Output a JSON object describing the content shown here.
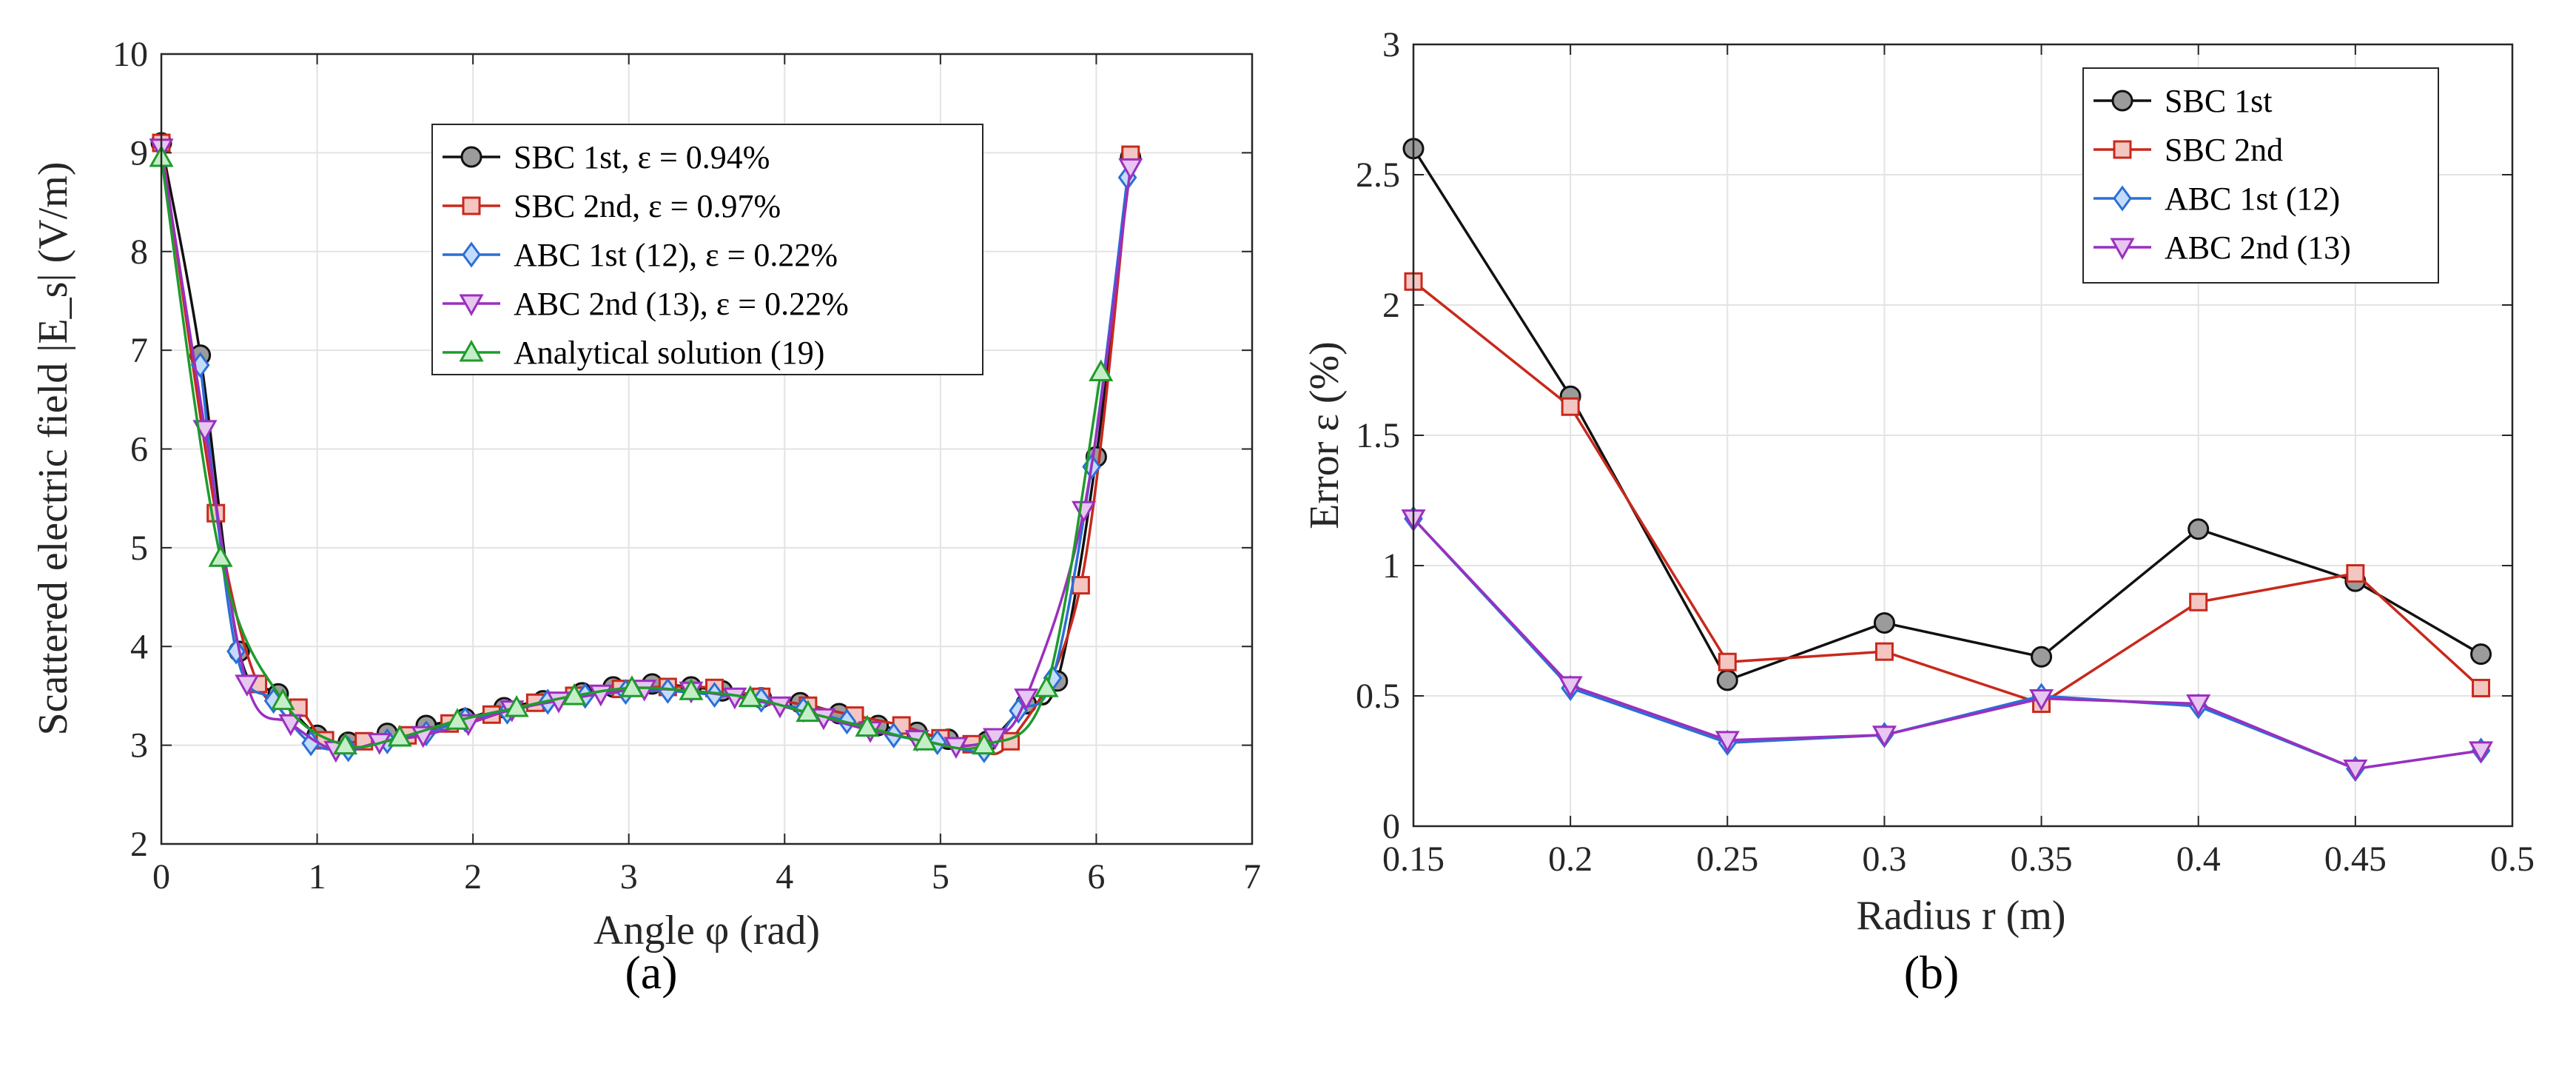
{
  "figure": {
    "panels": [
      "(a)",
      "(b)"
    ]
  },
  "chart_data": [
    {
      "id": "a",
      "type": "line",
      "caption": "(a)",
      "xlabel": "Angle φ (rad)",
      "ylabel": "Scattered electric field |E_s| (V/m)",
      "xlim": [
        0,
        7
      ],
      "ylim": [
        2,
        10
      ],
      "xticks": [
        "0",
        "1",
        "2",
        "3",
        "4",
        "5",
        "6",
        "7"
      ],
      "yticks": [
        "2",
        "3",
        "4",
        "5",
        "6",
        "7",
        "8",
        "9",
        "10"
      ],
      "grid": true,
      "legend_position": "top-center",
      "series": [
        {
          "name": "SBC 1st, ε = 0.94%",
          "color": "#111111",
          "fill": "#9b9b9b",
          "marker": "circle",
          "x": [
            0,
            0.25,
            0.5,
            0.75,
            1.0,
            1.2,
            1.45,
            1.7,
            1.95,
            2.2,
            2.45,
            2.7,
            2.9,
            3.15,
            3.4,
            3.6,
            3.85,
            4.1,
            4.35,
            4.6,
            4.85,
            5.05,
            5.3,
            5.55,
            5.75,
            6.0,
            6.22
          ],
          "y": [
            9.1,
            6.95,
            3.95,
            3.52,
            3.1,
            3.03,
            3.12,
            3.2,
            3.27,
            3.38,
            3.45,
            3.53,
            3.59,
            3.62,
            3.59,
            3.55,
            3.48,
            3.43,
            3.32,
            3.2,
            3.13,
            3.06,
            3.04,
            3.42,
            3.65,
            5.92,
            8.95
          ]
        },
        {
          "name": "SBC 2nd, ε = 0.97%",
          "color": "#c8291c",
          "fill": "#f4c6c2",
          "marker": "square",
          "x": [
            0,
            0.35,
            0.62,
            0.88,
            1.05,
            1.3,
            1.58,
            1.85,
            2.12,
            2.4,
            2.65,
            2.95,
            3.25,
            3.55,
            3.85,
            4.15,
            4.45,
            4.75,
            5.0,
            5.2,
            5.45,
            5.9,
            6.22
          ],
          "y": [
            9.1,
            5.35,
            3.62,
            3.38,
            3.05,
            3.04,
            3.1,
            3.22,
            3.31,
            3.43,
            3.5,
            3.57,
            3.59,
            3.58,
            3.49,
            3.4,
            3.3,
            3.2,
            3.07,
            3.01,
            3.04,
            4.62,
            8.98
          ]
        },
        {
          "name": "ABC 1st (12), ε = 0.22%",
          "color": "#2a6fd6",
          "fill": "#c4dcfb",
          "marker": "diamond",
          "x": [
            0.25,
            0.48,
            0.72,
            0.96,
            1.2,
            1.45,
            1.7,
            1.95,
            2.22,
            2.48,
            2.72,
            2.98,
            3.25,
            3.55,
            3.85,
            4.12,
            4.4,
            4.7,
            4.98,
            5.28,
            5.5,
            5.72,
            5.97,
            6.2
          ],
          "y": [
            6.85,
            3.95,
            3.45,
            3.02,
            2.96,
            3.04,
            3.12,
            3.26,
            3.34,
            3.44,
            3.5,
            3.54,
            3.55,
            3.51,
            3.46,
            3.36,
            3.24,
            3.1,
            3.03,
            2.95,
            3.35,
            3.68,
            5.82,
            8.75
          ]
        },
        {
          "name": "ABC 2nd (13), ε = 0.22%",
          "color": "#9b2fbf",
          "fill": "#e7c6f1",
          "marker": "triangle-down",
          "x": [
            0,
            0.28,
            0.55,
            0.83,
            1.12,
            1.4,
            1.68,
            1.97,
            2.25,
            2.55,
            2.82,
            3.1,
            3.4,
            3.68,
            3.97,
            4.25,
            4.55,
            4.85,
            5.1,
            5.35,
            5.55,
            5.92,
            6.22
          ],
          "y": [
            9.05,
            6.2,
            3.62,
            3.22,
            2.95,
            3.03,
            3.1,
            3.22,
            3.36,
            3.45,
            3.52,
            3.57,
            3.55,
            3.49,
            3.4,
            3.28,
            3.15,
            3.06,
            2.99,
            3.08,
            3.48,
            5.38,
            8.85
          ]
        },
        {
          "name": "Analytical solution (19)",
          "color": "#1f9b2c",
          "fill": "#c4eec8",
          "marker": "triangle-up",
          "x": [
            0,
            0.38,
            0.78,
            1.18,
            1.53,
            1.9,
            2.28,
            2.65,
            3.02,
            3.4,
            3.78,
            4.15,
            4.53,
            4.9,
            5.28,
            5.68,
            6.03
          ],
          "y": [
            8.95,
            4.9,
            3.45,
            3.0,
            3.08,
            3.25,
            3.38,
            3.5,
            3.58,
            3.55,
            3.48,
            3.33,
            3.18,
            3.04,
            3.0,
            3.58,
            6.78
          ]
        }
      ]
    },
    {
      "id": "b",
      "type": "line",
      "caption": "(b)",
      "xlabel": "Radius r (m)",
      "ylabel": "Error ε (%)",
      "xlim": [
        0.15,
        0.5
      ],
      "ylim": [
        0,
        3
      ],
      "xticks": [
        "0.15",
        "0.2",
        "0.25",
        "0.3",
        "0.35",
        "0.4",
        "0.45",
        "0.5"
      ],
      "yticks": [
        "0",
        "0.5",
        "1",
        "1.5",
        "2",
        "2.5",
        "3"
      ],
      "grid": true,
      "legend_position": "top-right",
      "x": [
        0.15,
        0.2,
        0.25,
        0.3,
        0.35,
        0.4,
        0.45,
        0.49
      ],
      "series": [
        {
          "name": "SBC 1st",
          "color": "#111111",
          "fill": "#9b9b9b",
          "marker": "circle",
          "values": [
            2.6,
            1.65,
            0.56,
            0.78,
            0.65,
            1.14,
            0.94,
            0.66
          ]
        },
        {
          "name": "SBC 2nd",
          "color": "#c8291c",
          "fill": "#f4c6c2",
          "marker": "square",
          "values": [
            2.09,
            1.61,
            0.63,
            0.67,
            0.47,
            0.86,
            0.97,
            0.53
          ]
        },
        {
          "name": "ABC 1st (12)",
          "color": "#2a6fd6",
          "fill": "#c4dcfb",
          "marker": "diamond",
          "values": [
            1.18,
            0.53,
            0.32,
            0.35,
            0.5,
            0.46,
            0.22,
            0.29
          ]
        },
        {
          "name": "ABC 2nd (13)",
          "color": "#9b2fbf",
          "fill": "#e7c6f1",
          "marker": "triangle-down",
          "values": [
            1.18,
            0.54,
            0.33,
            0.35,
            0.49,
            0.47,
            0.22,
            0.29
          ]
        }
      ]
    }
  ]
}
